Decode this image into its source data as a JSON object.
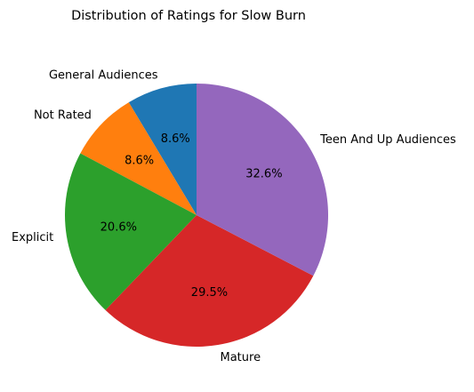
{
  "chart_data": {
    "type": "pie",
    "title": "Distribution of Ratings for Slow Burn",
    "start_angle_deg": 90,
    "direction": "counterclockwise",
    "slices": [
      {
        "label": "General Audiences",
        "value": 8.6,
        "pct_label": "8.6%",
        "color": "#1f77b4"
      },
      {
        "label": "Not Rated",
        "value": 8.6,
        "pct_label": "8.6%",
        "color": "#ff7f0e"
      },
      {
        "label": "Explicit",
        "value": 20.6,
        "pct_label": "20.6%",
        "color": "#2ca02c"
      },
      {
        "label": "Mature",
        "value": 29.5,
        "pct_label": "29.5%",
        "color": "#d62728"
      },
      {
        "label": "Teen And Up Audiences",
        "value": 32.6,
        "pct_label": "32.6%",
        "color": "#9467bd"
      }
    ]
  }
}
